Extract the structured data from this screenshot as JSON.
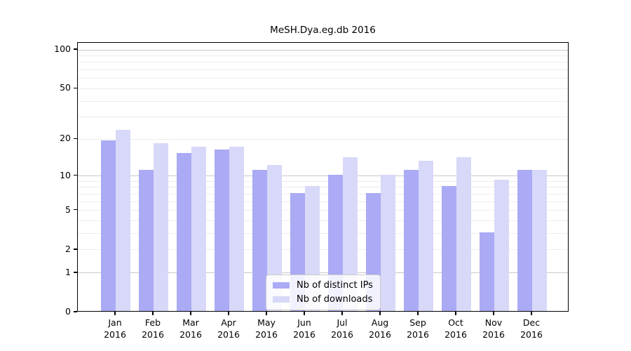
{
  "chart_data": {
    "type": "bar",
    "title": "MeSH.Dya.eg.db 2016",
    "categories": [
      "Jan",
      "Feb",
      "Mar",
      "Apr",
      "May",
      "Jun",
      "Jul",
      "Aug",
      "Sep",
      "Oct",
      "Nov",
      "Dec"
    ],
    "year_label": "2016",
    "series": [
      {
        "name": "Nb of distinct IPs",
        "color": "#aaaaf5",
        "values": [
          19,
          11,
          15,
          16,
          11,
          7,
          10,
          7,
          11,
          8,
          3,
          11
        ]
      },
      {
        "name": "Nb of downloads",
        "color": "#d8d8f8",
        "values": [
          23,
          18,
          17,
          17,
          12,
          8,
          14,
          10,
          13,
          14,
          9,
          11
        ]
      }
    ],
    "y_scale": "log1p",
    "y_tick_labels": [
      100,
      50,
      20,
      10,
      5,
      2,
      1,
      0
    ],
    "y_major_gridlines": [
      1,
      10,
      100
    ],
    "y_minor_gridlines": [
      2,
      3,
      4,
      5,
      6,
      7,
      8,
      9,
      20,
      30,
      40,
      50,
      60,
      70,
      80,
      90
    ],
    "ylim": [
      0,
      113
    ],
    "grid": true,
    "legend_position": "bottom-center",
    "axis_color": "#000000",
    "gridline_minor_color": "#ededed",
    "gridline_major_color": "#c9c9c9"
  }
}
